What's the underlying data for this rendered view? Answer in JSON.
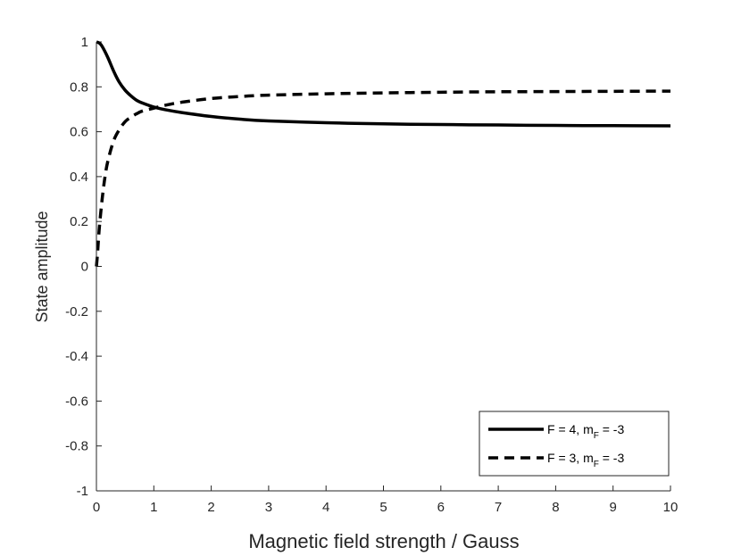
{
  "chart_data": {
    "type": "line",
    "xlabel": "Magnetic field strength / Gauss",
    "ylabel": "State amplitude",
    "xlim": [
      0,
      10
    ],
    "ylim": [
      -1,
      1
    ],
    "x_ticks": [
      "0",
      "1",
      "2",
      "3",
      "4",
      "5",
      "6",
      "7",
      "8",
      "9",
      "10"
    ],
    "y_ticks": [
      "1",
      "0.8",
      "0.6",
      "0.4",
      "0.2",
      "0",
      "-0.2",
      "-0.4",
      "-0.6",
      "-0.8",
      "-1"
    ],
    "grid": false,
    "legend_position": "bottom-right",
    "series": [
      {
        "name": "F = 4, m_F = -3",
        "legend_main": "F = 4, m",
        "legend_sub": "F",
        "legend_tail": " = -3",
        "style": "solid",
        "color": "#000000",
        "x": [
          0,
          0.05,
          0.1,
          0.2,
          0.3,
          0.4,
          0.5,
          0.6,
          0.7,
          0.8,
          1.0,
          1.2,
          1.5,
          2.0,
          2.5,
          3.0,
          4.0,
          5.0,
          6.0,
          7.0,
          8.0,
          9.0,
          10.0
        ],
        "y": [
          1.0,
          0.995,
          0.98,
          0.93,
          0.87,
          0.82,
          0.785,
          0.76,
          0.74,
          0.728,
          0.71,
          0.698,
          0.685,
          0.668,
          0.656,
          0.648,
          0.64,
          0.635,
          0.632,
          0.63,
          0.628,
          0.627,
          0.626
        ]
      },
      {
        "name": "F = 3, m_F = -3",
        "legend_main": "F = 3, m",
        "legend_sub": "F",
        "legend_tail": " = -3",
        "style": "dashed",
        "color": "#000000",
        "x": [
          0,
          0.02,
          0.05,
          0.1,
          0.15,
          0.2,
          0.3,
          0.4,
          0.5,
          0.6,
          0.7,
          0.8,
          1.0,
          1.2,
          1.5,
          2.0,
          2.5,
          3.0,
          4.0,
          5.0,
          6.0,
          7.0,
          8.0,
          9.0,
          10.0
        ],
        "y": [
          0.0,
          0.06,
          0.17,
          0.3,
          0.4,
          0.47,
          0.56,
          0.61,
          0.645,
          0.665,
          0.68,
          0.692,
          0.705,
          0.718,
          0.732,
          0.748,
          0.757,
          0.763,
          0.769,
          0.773,
          0.776,
          0.778,
          0.779,
          0.78,
          0.781
        ]
      }
    ]
  }
}
